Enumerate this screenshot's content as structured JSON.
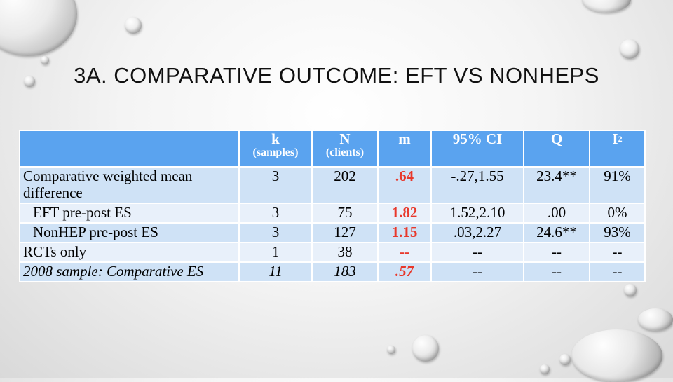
{
  "title": "3A. COMPARATIVE OUTCOME: EFT VS NONHEPS",
  "table": {
    "headers": [
      {
        "main": "",
        "sub": ""
      },
      {
        "main": "k",
        "sub": "(samples)"
      },
      {
        "main": "N",
        "sub": "(clients)"
      },
      {
        "main": "m",
        "sub": ""
      },
      {
        "main": "95% CI",
        "sub": ""
      },
      {
        "main": "Q",
        "sub": ""
      },
      {
        "main": "I",
        "sup": "2"
      }
    ],
    "rows": [
      {
        "label": "Comparative weighted mean difference",
        "k": "3",
        "n": "202",
        "m": ".64",
        "ci": "-.27,1.55",
        "q": "23.4**",
        "i2": "91%"
      },
      {
        "label": "EFT pre-post ES",
        "k": "3",
        "n": "75",
        "m": "1.82",
        "ci": "1.52,2.10",
        "q": ".00",
        "i2": "0%"
      },
      {
        "label": "NonHEP pre-post ES",
        "k": "3",
        "n": "127",
        "m": "1.15",
        "ci": ".03,2.27",
        "q": "24.6**",
        "i2": "93%"
      },
      {
        "label": "RCTs only",
        "k": "1",
        "n": "38",
        "m": "--",
        "ci": "--",
        "q": "--",
        "i2": "--"
      },
      {
        "label": "2008 sample: Comparative ES",
        "k": "11",
        "n": "183",
        "m": ".57",
        "ci": "--",
        "q": "--",
        "i2": "--"
      }
    ]
  },
  "colors": {
    "header_bg": "#5aa3ef",
    "row_dark": "#cfe2f6",
    "row_light": "#e8f0fa",
    "highlight": "#e8382b"
  }
}
